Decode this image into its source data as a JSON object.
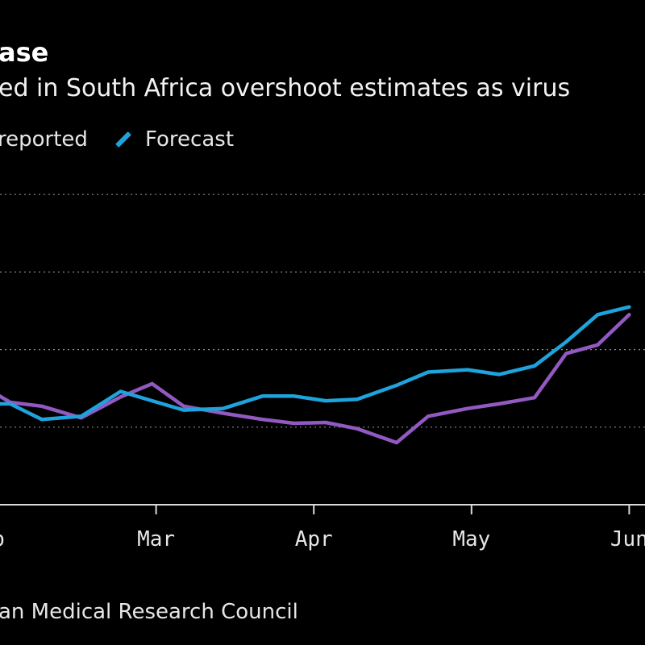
{
  "chart_data": {
    "type": "line",
    "title": "ase",
    "subtitle": "ed in South Africa overshoot estimates as virus",
    "legend": {
      "placement": "top-left",
      "entries": [
        "reported",
        "Forecast"
      ]
    },
    "source": "an Medical Research Council",
    "x_ticks": [
      {
        "label": "b",
        "x": 0
      },
      {
        "label": "Mar",
        "x": 4
      },
      {
        "label": "Apr",
        "x": 8
      },
      {
        "label": "May",
        "x": 12
      },
      {
        "label": "Jun",
        "x": 16
      }
    ],
    "grid": "horizontal-dotted",
    "y_gridlines": [
      1,
      2,
      3,
      4
    ],
    "ylim": [
      0,
      4
    ],
    "xlim": [
      0,
      17
    ],
    "series": [
      {
        "name": "reported",
        "color": "#9359c2",
        "points": [
          [
            -0.2,
            1.47
          ],
          [
            0.3,
            1.32
          ],
          [
            1.1,
            1.27
          ],
          [
            2.1,
            1.12
          ],
          [
            3.1,
            1.39
          ],
          [
            3.9,
            1.56
          ],
          [
            4.7,
            1.27
          ],
          [
            5.7,
            1.18
          ],
          [
            6.7,
            1.1
          ],
          [
            7.5,
            1.05
          ],
          [
            8.3,
            1.06
          ],
          [
            9.1,
            0.98
          ],
          [
            10.1,
            0.8
          ],
          [
            10.9,
            1.14
          ],
          [
            11.9,
            1.24
          ],
          [
            12.7,
            1.3
          ],
          [
            13.6,
            1.38
          ],
          [
            14.4,
            1.95
          ],
          [
            15.2,
            2.06
          ],
          [
            16.0,
            2.45
          ]
        ]
      },
      {
        "name": "Forecast",
        "color": "#1fa3dc",
        "points": [
          [
            -0.2,
            1.3
          ],
          [
            0.3,
            1.3
          ],
          [
            1.1,
            1.1
          ],
          [
            2.1,
            1.14
          ],
          [
            3.1,
            1.46
          ],
          [
            3.9,
            1.34
          ],
          [
            4.7,
            1.22
          ],
          [
            5.7,
            1.24
          ],
          [
            6.7,
            1.4
          ],
          [
            7.5,
            1.4
          ],
          [
            8.3,
            1.34
          ],
          [
            9.1,
            1.36
          ],
          [
            10.1,
            1.54
          ],
          [
            10.9,
            1.71
          ],
          [
            11.9,
            1.74
          ],
          [
            12.7,
            1.68
          ],
          [
            13.6,
            1.79
          ],
          [
            14.4,
            2.1
          ],
          [
            15.2,
            2.45
          ],
          [
            16.0,
            2.55
          ]
        ]
      }
    ]
  }
}
